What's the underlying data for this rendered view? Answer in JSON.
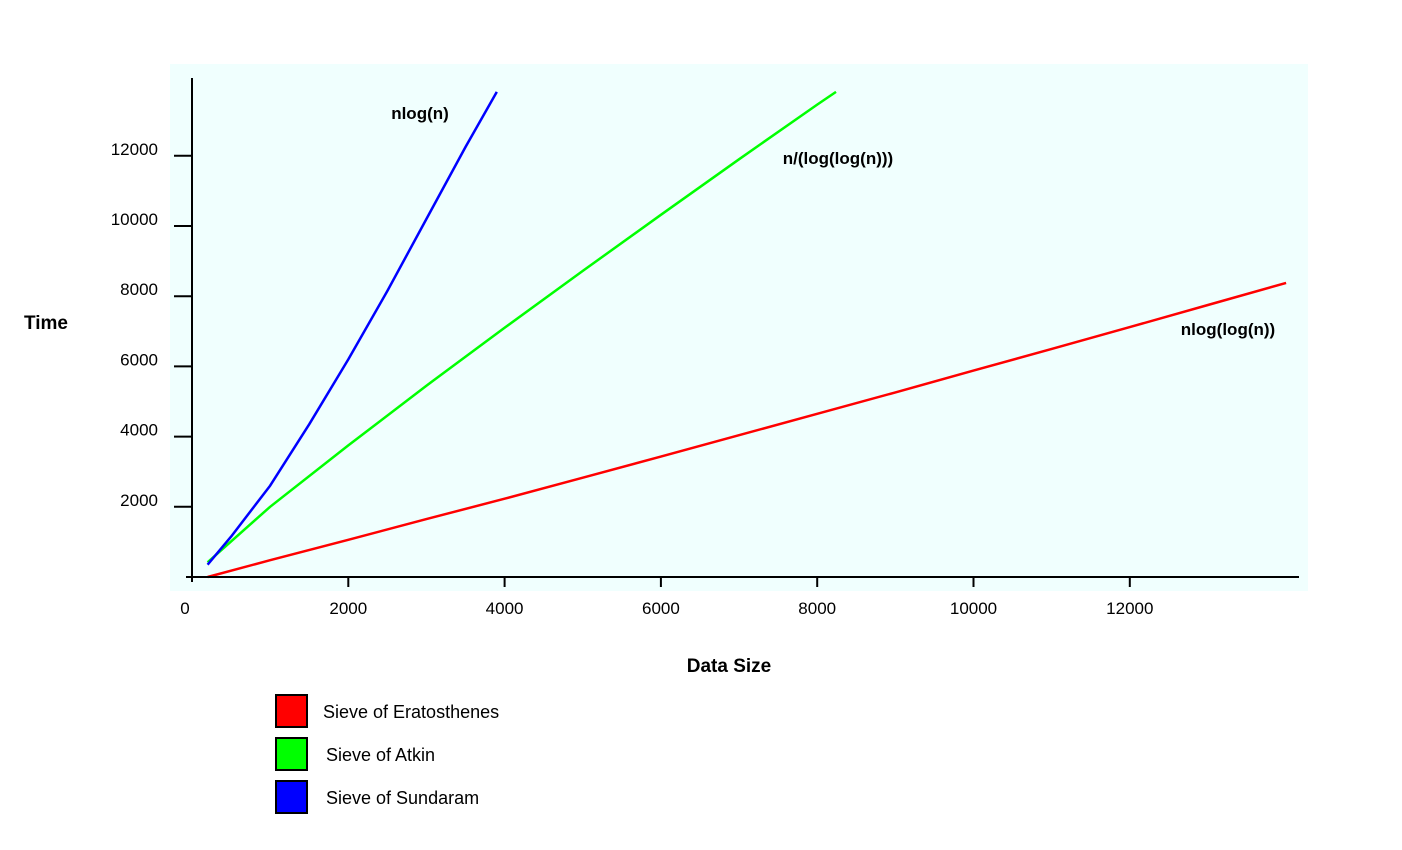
{
  "chart_data": {
    "type": "line",
    "title": "",
    "xlabel": "Data Size",
    "ylabel": "Time",
    "xlim": [
      0,
      14000
    ],
    "ylim": [
      0,
      14000
    ],
    "x_ticks": [
      0,
      2000,
      4000,
      6000,
      8000,
      10000,
      12000
    ],
    "y_ticks": [
      2000,
      4000,
      6000,
      8000,
      10000,
      12000
    ],
    "grid": false,
    "plot_background": "#f0fffe",
    "legend_position": "bottom-left",
    "series": [
      {
        "name": "Sieve of Eratosthenes",
        "color": "#ff0000",
        "annotation": "nlog(log(n))",
        "x": [
          200,
          1000,
          2000,
          3000,
          4000,
          5000,
          6000,
          7000,
          8000,
          9000,
          10000,
          11000,
          12000,
          13000,
          14000
        ],
        "y": [
          0,
          480,
          1060,
          1650,
          2230,
          2830,
          3430,
          4040,
          4650,
          5260,
          5880,
          6500,
          7120,
          7750,
          8380
        ]
      },
      {
        "name": "Sieve of Atkin",
        "color": "#00ff00",
        "annotation": "n/(log(log(n)))",
        "x": [
          200,
          1000,
          2000,
          3000,
          4000,
          5000,
          6000,
          7000,
          8000,
          8240
        ],
        "y": [
          420,
          2000,
          3750,
          5450,
          7100,
          8720,
          10320,
          11900,
          13460,
          13820
        ]
      },
      {
        "name": "Sieve of Sundaram",
        "color": "#0000ff",
        "annotation": "nlog(n)",
        "x": [
          200,
          500,
          1000,
          1500,
          2000,
          2500,
          3000,
          3500,
          3900
        ],
        "y": [
          350,
          1150,
          2600,
          4350,
          6200,
          8150,
          10200,
          12250,
          13820
        ]
      }
    ]
  }
}
